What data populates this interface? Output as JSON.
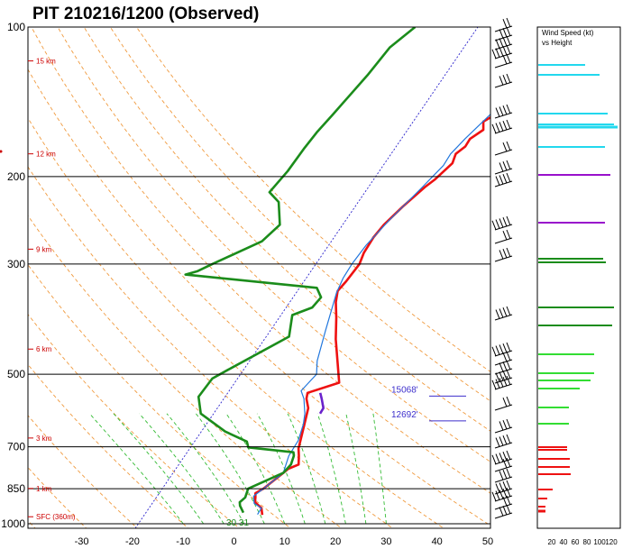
{
  "title": "PIT   210216/1200  (Observed)",
  "chart_data": {
    "type": "line",
    "title": "PIT   210216/1200  (Observed)",
    "xlim": [
      -40,
      50
    ],
    "ylim_hpa": [
      1000,
      100
    ],
    "y_scale": "log",
    "pressure_ticks": [
      "100",
      "200",
      "300",
      "500",
      "700",
      "850",
      "1000"
    ],
    "pressure_tick_values": [
      100,
      200,
      300,
      500,
      700,
      850,
      1000
    ],
    "temp_ticks": [
      "-30",
      "-20",
      "-10",
      "0",
      "10",
      "20",
      "30",
      "40",
      "50"
    ],
    "temp_tick_values": [
      -30,
      -20,
      -10,
      0,
      10,
      20,
      30,
      40,
      50
    ],
    "height_labels": [
      {
        "label": "15 km",
        "p": 117
      },
      {
        "label": "12 km",
        "p": 180
      },
      {
        "label": "9 km",
        "p": 280
      },
      {
        "label": "6 km",
        "p": 445
      },
      {
        "label": "3 km",
        "p": 672
      },
      {
        "label": "1 km",
        "p": 849
      },
      {
        "label": "SFC (360m)",
        "p": 968
      }
    ],
    "series": [
      {
        "color": "#ee1111",
        "points": [
          [
            5.0,
            100
          ],
          [
            3.0,
            108
          ],
          [
            3.0,
            119
          ],
          [
            5.0,
            127
          ],
          [
            2.0,
            131
          ],
          [
            1.2,
            145
          ],
          [
            1.5,
            150
          ],
          [
            0.0,
            155
          ],
          [
            1.0,
            161
          ],
          [
            -0.5,
            168
          ],
          [
            -0.5,
            174
          ],
          [
            -1.5,
            180
          ],
          [
            -1.0,
            188
          ],
          [
            -2.5,
            203
          ],
          [
            -3.5,
            210
          ],
          [
            -5.5,
            230
          ],
          [
            -7.0,
            250
          ],
          [
            -7.5,
            265
          ],
          [
            -7.5,
            285
          ],
          [
            -7.0,
            300
          ],
          [
            -7.5,
            325
          ],
          [
            -8.0,
            340
          ],
          [
            -7.0,
            358
          ],
          [
            -5.0,
            385
          ],
          [
            -2.5,
            425
          ],
          [
            0.5,
            470
          ],
          [
            3.5,
            520
          ],
          [
            -1.5,
            545
          ],
          [
            -1.0,
            560
          ],
          [
            0.5,
            585
          ],
          [
            1.5,
            622
          ],
          [
            2.5,
            662
          ],
          [
            3.5,
            705
          ],
          [
            4.5,
            730
          ],
          [
            5.5,
            760
          ],
          [
            4.0,
            775
          ],
          [
            3.5,
            790
          ],
          [
            1.5,
            850
          ],
          [
            0.5,
            868
          ],
          [
            1.0,
            885
          ],
          [
            1.5,
            905
          ],
          [
            3.5,
            930
          ],
          [
            4.5,
            960
          ]
        ]
      },
      {
        "color": "#2277dd",
        "points": [
          [
            4.5,
            100
          ],
          [
            3.0,
            108
          ],
          [
            2.5,
            119
          ],
          [
            4.5,
            127
          ],
          [
            1.5,
            131
          ],
          [
            0.5,
            150
          ],
          [
            -1.5,
            168
          ],
          [
            -2.5,
            180
          ],
          [
            -2.5,
            190
          ],
          [
            -4.0,
            210
          ],
          [
            -6.5,
            245
          ],
          [
            -8.0,
            275
          ],
          [
            -8.5,
            300
          ],
          [
            -8.5,
            320
          ],
          [
            -8.0,
            343
          ],
          [
            -5.5,
            410
          ],
          [
            -3.5,
            470
          ],
          [
            -2.0,
            500
          ],
          [
            -3.0,
            540
          ],
          [
            -1.5,
            560
          ],
          [
            0.5,
            600
          ],
          [
            1.5,
            630
          ],
          [
            2.5,
            680
          ],
          [
            2.5,
            730
          ],
          [
            3.5,
            790
          ],
          [
            1.5,
            850
          ],
          [
            0.5,
            880
          ],
          [
            1.5,
            910
          ],
          [
            3.5,
            930
          ],
          [
            3.5,
            958
          ]
        ]
      },
      {
        "color": "#1b8c1b",
        "points": [
          [
            -25.0,
            100
          ],
          [
            -27.5,
            110
          ],
          [
            -28.5,
            125
          ],
          [
            -29.5,
            137
          ],
          [
            -30.5,
            150
          ],
          [
            -31.5,
            163
          ],
          [
            -32.0,
            175
          ],
          [
            -32.5,
            195
          ],
          [
            -33.5,
            215
          ],
          [
            -30.5,
            225
          ],
          [
            -27.5,
            250
          ],
          [
            -29.0,
            270
          ],
          [
            -36.0,
            300
          ],
          [
            -38.0,
            310
          ],
          [
            -40.0,
            315
          ],
          [
            -12.5,
            335
          ],
          [
            -10.5,
            350
          ],
          [
            -11.0,
            367
          ],
          [
            -14.0,
            380
          ],
          [
            -12.0,
            420
          ],
          [
            -20.0,
            490
          ],
          [
            -22.0,
            510
          ],
          [
            -22.5,
            555
          ],
          [
            -20.0,
            600
          ],
          [
            -13.0,
            652
          ],
          [
            -7.5,
            683
          ],
          [
            -6.5,
            702
          ],
          [
            3.0,
            718
          ],
          [
            3.5,
            730
          ],
          [
            4.0,
            760
          ],
          [
            3.5,
            790
          ],
          [
            -1.5,
            850
          ],
          [
            -1.0,
            885
          ],
          [
            -1.5,
            905
          ],
          [
            -1.0,
            920
          ],
          [
            0.5,
            950
          ]
        ]
      },
      {
        "color": "#6a22cc",
        "points": [
          [
            1.0,
            545
          ],
          [
            2.0,
            560
          ],
          [
            3.5,
            585
          ],
          [
            3.5,
            600
          ]
        ]
      }
    ],
    "levels": [
      {
        "label": "15068'",
        "p": 542
      },
      {
        "label": "12692'",
        "p": 608
      }
    ],
    "surface_label": "30  31",
    "wind_speed_panel": {
      "title": "Wind Speed (kt)",
      "subtitle": "vs Height",
      "ticks": [
        "20",
        "40",
        "60",
        "80",
        "100",
        "120"
      ]
    }
  }
}
